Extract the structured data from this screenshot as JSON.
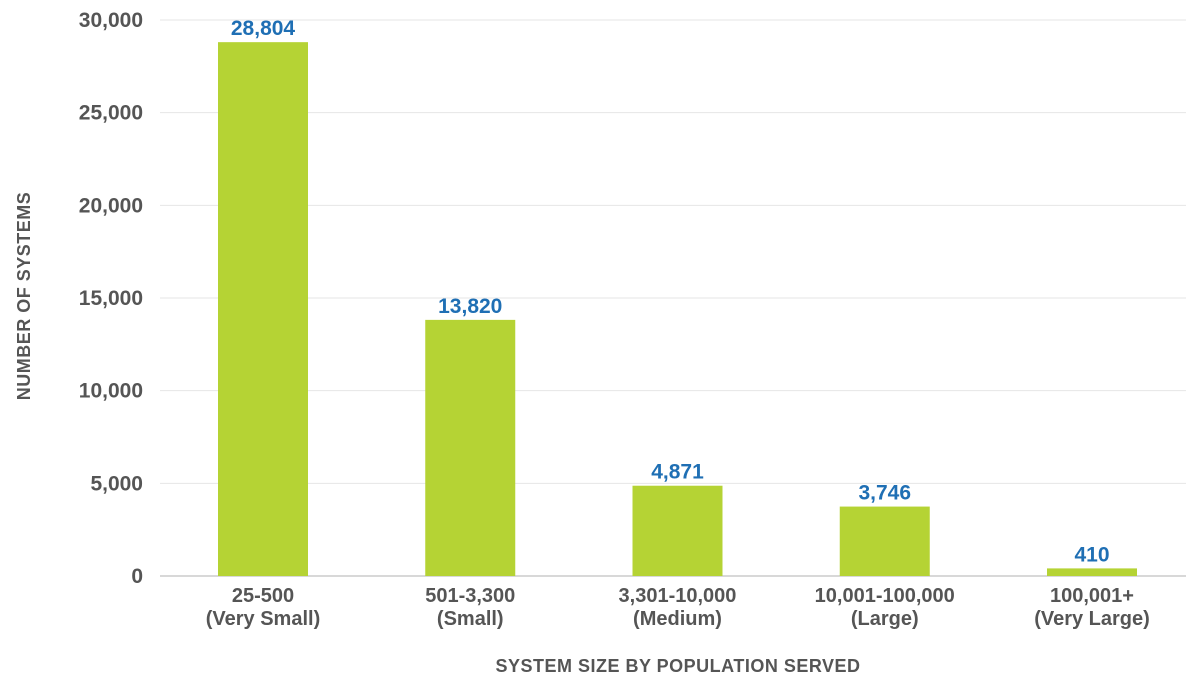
{
  "chart_data": {
    "type": "bar",
    "title": "",
    "xlabel": "SYSTEM SIZE BY POPULATION SERVED",
    "ylabel": "NUMBER OF SYSTEMS",
    "ylim": [
      0,
      30000
    ],
    "yticks": [
      0,
      5000,
      10000,
      15000,
      20000,
      25000,
      30000
    ],
    "ytick_labels": [
      "0",
      "5,000",
      "10,000",
      "15,000",
      "20,000",
      "25,000",
      "30,000"
    ],
    "grid": true,
    "categories": [
      [
        "25-500",
        "(Very Small)"
      ],
      [
        "501-3,300",
        "(Small)"
      ],
      [
        "3,301-10,000",
        "(Medium)"
      ],
      [
        "10,001-100,000",
        "(Large)"
      ],
      [
        "100,001+",
        "(Very Large)"
      ]
    ],
    "values": [
      28804,
      13820,
      4871,
      3746,
      410
    ],
    "value_labels": [
      "28,804",
      "13,820",
      "4,871",
      "3,746",
      "410"
    ],
    "colors": {
      "bar": "#b5d334",
      "data_label": "#1f6fb4",
      "grid": "#e6e6e6",
      "axis": "#cccccc"
    }
  }
}
